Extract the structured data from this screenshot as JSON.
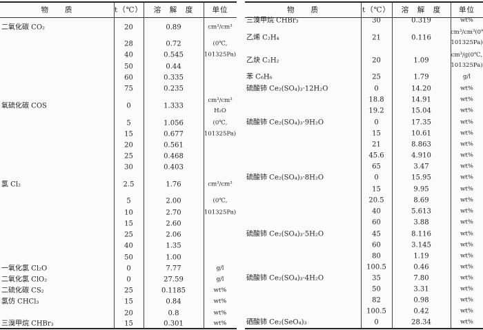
{
  "headers": {
    "substance": "物　　质",
    "temperature": "t（℃）",
    "solubility": "溶　解　度",
    "unit": "单位"
  },
  "left_table": [
    {
      "substance": "二氧化碳 CO₂",
      "t": "20",
      "solubility": "0.89",
      "unit": "cm³/cm³"
    },
    {
      "substance": "",
      "t": "28",
      "solubility": "0.72",
      "unit": "(0℃,"
    },
    {
      "substance": "",
      "t": "40",
      "solubility": "0.545",
      "unit": "101325Pa)"
    },
    {
      "substance": "",
      "t": "50",
      "solubility": "0.44",
      "unit": ""
    },
    {
      "substance": "",
      "t": "60",
      "solubility": "0.335",
      "unit": ""
    },
    {
      "substance": "",
      "t": "75",
      "solubility": "0.235",
      "unit": ""
    },
    {
      "substance": "氧硫化碳 COS",
      "t": "0",
      "solubility": "1.333",
      "unit": "cm³/cm³\nH₂O"
    },
    {
      "substance": "",
      "t": "5",
      "solubility": "1.056",
      "unit": "(0℃,"
    },
    {
      "substance": "",
      "t": "15",
      "solubility": "0.677",
      "unit": "101325Pa)"
    },
    {
      "substance": "",
      "t": "20",
      "solubility": "0.561",
      "unit": ""
    },
    {
      "substance": "",
      "t": "25",
      "solubility": "0.468",
      "unit": ""
    },
    {
      "substance": "",
      "t": "30",
      "solubility": "0.403",
      "unit": ""
    },
    {
      "substance": "氯 Cl₂",
      "t": "2.5",
      "solubility": "1.76",
      "unit": "cm³/cm³"
    },
    {
      "substance": "",
      "t": "5",
      "solubility": "2.00",
      "unit": "(0℃,"
    },
    {
      "substance": "",
      "t": "10",
      "solubility": "2.70",
      "unit": "101325Pa)"
    },
    {
      "substance": "",
      "t": "15",
      "solubility": "2.60",
      "unit": ""
    },
    {
      "substance": "",
      "t": "25",
      "solubility": "2.06",
      "unit": ""
    },
    {
      "substance": "",
      "t": "40",
      "solubility": "1.35",
      "unit": ""
    },
    {
      "substance": "",
      "t": "50",
      "solubility": "1.00",
      "unit": ""
    },
    {
      "substance": "一氧化氯 Cl₂O",
      "t": "0",
      "solubility": "7.77",
      "unit": "g/l"
    },
    {
      "substance": "二氧化氯 ClO₂",
      "t": "0",
      "solubility": "27.59",
      "unit": "g/l"
    },
    {
      "substance": "二硫化碳 CS₂",
      "t": "25",
      "solubility": "0.1185",
      "unit": "wt%"
    },
    {
      "substance": "氯仿 CHCl₃",
      "t": "15",
      "solubility": "0.84",
      "unit": "wt%"
    },
    {
      "substance": "",
      "t": "20",
      "solubility": "0.8",
      "unit": "wt%"
    },
    {
      "substance": "三溴甲烷 CHBr₃",
      "t": "15",
      "solubility": "0.301",
      "unit": "wt%"
    }
  ],
  "right_table": [
    {
      "substance": "三溴甲烷 CHBr₃",
      "t": "30",
      "solubility": "0.319",
      "unit": "wt%"
    },
    {
      "substance": "乙烯 C₂H₄",
      "t": "21",
      "solubility": "0.116",
      "unit": "cm³/cm³(0℃\n101325Pa)"
    },
    {
      "substance": "乙炔 C₂H₂",
      "t": "20",
      "solubility": "1.09",
      "unit": "cm³/g(0℃,\n101325Pa)"
    },
    {
      "substance": "苯 C₆H₆",
      "t": "25",
      "solubility": "1.79",
      "unit": "g/l"
    },
    {
      "substance": "硫酸铈 Ce₂(SO₄)₃·12H₂O",
      "t": "0",
      "solubility": "14.20",
      "unit": "wt%"
    },
    {
      "substance": "",
      "t": "18.8",
      "solubility": "14.91",
      "unit": "wt%"
    },
    {
      "substance": "",
      "t": "19.2",
      "solubility": "15.04",
      "unit": "wt%"
    },
    {
      "substance": "硫酸铈 Ce₂(SO₄)₃·9H₂O",
      "t": "0",
      "solubility": "17.35",
      "unit": "wt%"
    },
    {
      "substance": "",
      "t": "15",
      "solubility": "10.61",
      "unit": "wt%"
    },
    {
      "substance": "",
      "t": "21",
      "solubility": "8.863",
      "unit": "wt%"
    },
    {
      "substance": "",
      "t": "45.6",
      "solubility": "4.910",
      "unit": "wt%"
    },
    {
      "substance": "",
      "t": "65",
      "solubility": "3.47",
      "unit": "wt%"
    },
    {
      "substance": "硫酸铈 Ce₂(SO₄)₃·8H₂O",
      "t": "0",
      "solubility": "15.95",
      "unit": "wt%"
    },
    {
      "substance": "",
      "t": "15",
      "solubility": "9.95",
      "unit": "wt%"
    },
    {
      "substance": "",
      "t": "20.5",
      "solubility": "8.69",
      "unit": "wt%"
    },
    {
      "substance": "",
      "t": "40",
      "solubility": "5.613",
      "unit": "wt%"
    },
    {
      "substance": "",
      "t": "60",
      "solubility": "3.88",
      "unit": "wt%"
    },
    {
      "substance": "硫酸铈 Ce₂(SO₄)₃·5H₂O",
      "t": "45",
      "solubility": "8.116",
      "unit": "wt%"
    },
    {
      "substance": "",
      "t": "60",
      "solubility": "3.145",
      "unit": "wt%"
    },
    {
      "substance": "",
      "t": "80",
      "solubility": "1.19",
      "unit": "wt%"
    },
    {
      "substance": "",
      "t": "100.5",
      "solubility": "0.46",
      "unit": "wt%"
    },
    {
      "substance": "硫酸铈 Ce₂(SO₄)₃·4H₂O",
      "t": "35",
      "solubility": "7.80",
      "unit": "wt%"
    },
    {
      "substance": "",
      "t": "50",
      "solubility": "3.31",
      "unit": "wt%"
    },
    {
      "substance": "",
      "t": "82",
      "solubility": "0.98",
      "unit": "wt%"
    },
    {
      "substance": "",
      "t": "100.5",
      "solubility": "0.42",
      "unit": "wt%"
    },
    {
      "substance": "硒酸铈 Ce₂(SeO₄)₃",
      "t": "0",
      "solubility": "28.34",
      "unit": "wt%"
    }
  ]
}
